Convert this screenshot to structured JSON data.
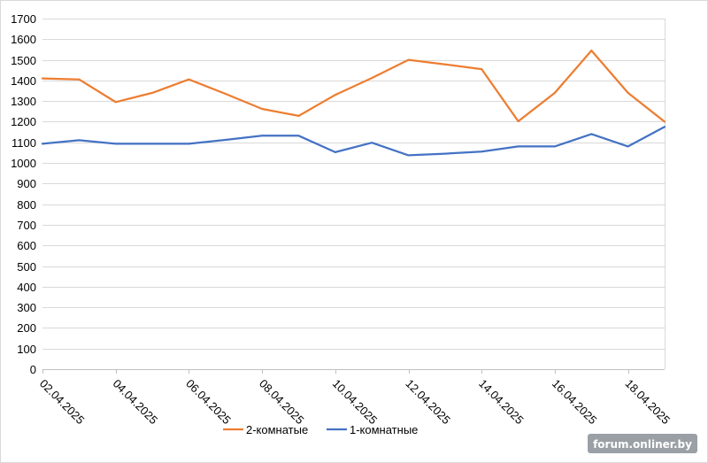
{
  "chart_data": {
    "type": "line",
    "title": "",
    "xlabel": "",
    "ylabel": "",
    "ylim": [
      0,
      1700
    ],
    "ytick_step": 100,
    "grid": true,
    "legend_position": "bottom",
    "x": [
      "02.04.2025",
      "03.04.2025",
      "04.04.2025",
      "05.04.2025",
      "06.04.2025",
      "07.04.2025",
      "08.04.2025",
      "09.04.2025",
      "10.04.2025",
      "11.04.2025",
      "12.04.2025",
      "13.04.2025",
      "14.04.2025",
      "15.04.2025",
      "16.04.2025",
      "17.04.2025",
      "18.04.2025",
      "19.04.2025"
    ],
    "x_tick_labels": [
      "02.04.2025",
      "04.04.2025",
      "06.04.2025",
      "08.04.2025",
      "10.04.2025",
      "12.04.2025",
      "14.04.2025",
      "16.04.2025",
      "18.04.2025"
    ],
    "series": [
      {
        "name": "2-комнатые",
        "color": "#ed7d31",
        "values": [
          1410,
          1405,
          1295,
          1340,
          1405,
          1335,
          1262,
          1228,
          1330,
          1412,
          1500,
          1478,
          1455,
          1202,
          1340,
          1545,
          1340,
          1200
        ]
      },
      {
        "name": "1-комнатные",
        "color": "#4472c4",
        "values": [
          1093,
          1110,
          1093,
          1093,
          1093,
          1112,
          1132,
          1132,
          1052,
          1098,
          1037,
          1045,
          1055,
          1080,
          1080,
          1140,
          1080,
          1175
        ]
      }
    ]
  },
  "watermark": {
    "text": "forum.onliner.by"
  },
  "colors": {
    "grid": "#d9d9d9",
    "axis": "#bfbfbf",
    "watermark_bg": "#9aa0a6"
  }
}
